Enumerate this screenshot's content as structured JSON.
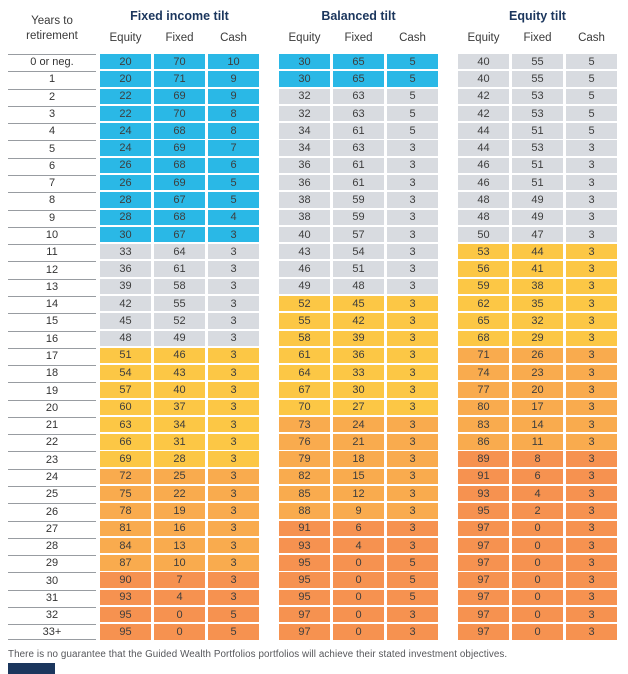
{
  "header": {
    "years_label_line1": "Years to",
    "years_label_line2": "retirement",
    "groups": [
      {
        "title": "Fixed income tilt"
      },
      {
        "title": "Balanced tilt"
      },
      {
        "title": "Equity tilt"
      }
    ],
    "columns": [
      "Equity",
      "Fixed",
      "Cash"
    ]
  },
  "palette": {
    "blue": "#2AB8E6",
    "gray": "#D8DBE0",
    "yellow": "#FCC745",
    "orangeLight": "#F9AB4E",
    "orangeDark": "#F69250",
    "navy": "#1B365D"
  },
  "rows": [
    {
      "years": "0 or neg.",
      "cells": [
        [
          20,
          70,
          10
        ],
        [
          30,
          65,
          5
        ],
        [
          40,
          55,
          5
        ]
      ],
      "colors": [
        "blue",
        "blue",
        "gray"
      ]
    },
    {
      "years": "1",
      "cells": [
        [
          20,
          71,
          9
        ],
        [
          30,
          65,
          5
        ],
        [
          40,
          55,
          5
        ]
      ],
      "colors": [
        "blue",
        "blue",
        "gray"
      ]
    },
    {
      "years": "2",
      "cells": [
        [
          22,
          69,
          9
        ],
        [
          32,
          63,
          5
        ],
        [
          42,
          53,
          5
        ]
      ],
      "colors": [
        "blue",
        "gray",
        "gray"
      ]
    },
    {
      "years": "3",
      "cells": [
        [
          22,
          70,
          8
        ],
        [
          32,
          63,
          5
        ],
        [
          42,
          53,
          5
        ]
      ],
      "colors": [
        "blue",
        "gray",
        "gray"
      ]
    },
    {
      "years": "4",
      "cells": [
        [
          24,
          68,
          8
        ],
        [
          34,
          61,
          5
        ],
        [
          44,
          51,
          5
        ]
      ],
      "colors": [
        "blue",
        "gray",
        "gray"
      ]
    },
    {
      "years": "5",
      "cells": [
        [
          24,
          69,
          7
        ],
        [
          34,
          63,
          3
        ],
        [
          44,
          53,
          3
        ]
      ],
      "colors": [
        "blue",
        "gray",
        "gray"
      ]
    },
    {
      "years": "6",
      "cells": [
        [
          26,
          68,
          6
        ],
        [
          36,
          61,
          3
        ],
        [
          46,
          51,
          3
        ]
      ],
      "colors": [
        "blue",
        "gray",
        "gray"
      ]
    },
    {
      "years": "7",
      "cells": [
        [
          26,
          69,
          5
        ],
        [
          36,
          61,
          3
        ],
        [
          46,
          51,
          3
        ]
      ],
      "colors": [
        "blue",
        "gray",
        "gray"
      ]
    },
    {
      "years": "8",
      "cells": [
        [
          28,
          67,
          5
        ],
        [
          38,
          59,
          3
        ],
        [
          48,
          49,
          3
        ]
      ],
      "colors": [
        "blue",
        "gray",
        "gray"
      ]
    },
    {
      "years": "9",
      "cells": [
        [
          28,
          68,
          4
        ],
        [
          38,
          59,
          3
        ],
        [
          48,
          49,
          3
        ]
      ],
      "colors": [
        "blue",
        "gray",
        "gray"
      ]
    },
    {
      "years": "10",
      "cells": [
        [
          30,
          67,
          3
        ],
        [
          40,
          57,
          3
        ],
        [
          50,
          47,
          3
        ]
      ],
      "colors": [
        "blue",
        "gray",
        "gray"
      ]
    },
    {
      "years": "11",
      "cells": [
        [
          33,
          64,
          3
        ],
        [
          43,
          54,
          3
        ],
        [
          53,
          44,
          3
        ]
      ],
      "colors": [
        "gray",
        "gray",
        "yellow"
      ]
    },
    {
      "years": "12",
      "cells": [
        [
          36,
          61,
          3
        ],
        [
          46,
          51,
          3
        ],
        [
          56,
          41,
          3
        ]
      ],
      "colors": [
        "gray",
        "gray",
        "yellow"
      ]
    },
    {
      "years": "13",
      "cells": [
        [
          39,
          58,
          3
        ],
        [
          49,
          48,
          3
        ],
        [
          59,
          38,
          3
        ]
      ],
      "colors": [
        "gray",
        "gray",
        "yellow"
      ]
    },
    {
      "years": "14",
      "cells": [
        [
          42,
          55,
          3
        ],
        [
          52,
          45,
          3
        ],
        [
          62,
          35,
          3
        ]
      ],
      "colors": [
        "gray",
        "yellow",
        "yellow"
      ]
    },
    {
      "years": "15",
      "cells": [
        [
          45,
          52,
          3
        ],
        [
          55,
          42,
          3
        ],
        [
          65,
          32,
          3
        ]
      ],
      "colors": [
        "gray",
        "yellow",
        "yellow"
      ]
    },
    {
      "years": "16",
      "cells": [
        [
          48,
          49,
          3
        ],
        [
          58,
          39,
          3
        ],
        [
          68,
          29,
          3
        ]
      ],
      "colors": [
        "gray",
        "yellow",
        "yellow"
      ]
    },
    {
      "years": "17",
      "cells": [
        [
          51,
          46,
          3
        ],
        [
          61,
          36,
          3
        ],
        [
          71,
          26,
          3
        ]
      ],
      "colors": [
        "yellow",
        "yellow",
        "orangeLight"
      ]
    },
    {
      "years": "18",
      "cells": [
        [
          54,
          43,
          3
        ],
        [
          64,
          33,
          3
        ],
        [
          74,
          23,
          3
        ]
      ],
      "colors": [
        "yellow",
        "yellow",
        "orangeLight"
      ]
    },
    {
      "years": "19",
      "cells": [
        [
          57,
          40,
          3
        ],
        [
          67,
          30,
          3
        ],
        [
          77,
          20,
          3
        ]
      ],
      "colors": [
        "yellow",
        "yellow",
        "orangeLight"
      ]
    },
    {
      "years": "20",
      "cells": [
        [
          60,
          37,
          3
        ],
        [
          70,
          27,
          3
        ],
        [
          80,
          17,
          3
        ]
      ],
      "colors": [
        "yellow",
        "yellow",
        "orangeLight"
      ]
    },
    {
      "years": "21",
      "cells": [
        [
          63,
          34,
          3
        ],
        [
          73,
          24,
          3
        ],
        [
          83,
          14,
          3
        ]
      ],
      "colors": [
        "yellow",
        "orangeLight",
        "orangeLight"
      ]
    },
    {
      "years": "22",
      "cells": [
        [
          66,
          31,
          3
        ],
        [
          76,
          21,
          3
        ],
        [
          86,
          11,
          3
        ]
      ],
      "colors": [
        "yellow",
        "orangeLight",
        "orangeLight"
      ]
    },
    {
      "years": "23",
      "cells": [
        [
          69,
          28,
          3
        ],
        [
          79,
          18,
          3
        ],
        [
          89,
          8,
          3
        ]
      ],
      "colors": [
        "yellow",
        "orangeLight",
        "orangeDark"
      ]
    },
    {
      "years": "24",
      "cells": [
        [
          72,
          25,
          3
        ],
        [
          82,
          15,
          3
        ],
        [
          91,
          6,
          3
        ]
      ],
      "colors": [
        "orangeLight",
        "orangeLight",
        "orangeDark"
      ]
    },
    {
      "years": "25",
      "cells": [
        [
          75,
          22,
          3
        ],
        [
          85,
          12,
          3
        ],
        [
          93,
          4,
          3
        ]
      ],
      "colors": [
        "orangeLight",
        "orangeLight",
        "orangeDark"
      ]
    },
    {
      "years": "26",
      "cells": [
        [
          78,
          19,
          3
        ],
        [
          88,
          9,
          3
        ],
        [
          95,
          2,
          3
        ]
      ],
      "colors": [
        "orangeLight",
        "orangeLight",
        "orangeDark"
      ]
    },
    {
      "years": "27",
      "cells": [
        [
          81,
          16,
          3
        ],
        [
          91,
          6,
          3
        ],
        [
          97,
          0,
          3
        ]
      ],
      "colors": [
        "orangeLight",
        "orangeDark",
        "orangeDark"
      ]
    },
    {
      "years": "28",
      "cells": [
        [
          84,
          13,
          3
        ],
        [
          93,
          4,
          3
        ],
        [
          97,
          0,
          3
        ]
      ],
      "colors": [
        "orangeLight",
        "orangeDark",
        "orangeDark"
      ]
    },
    {
      "years": "29",
      "cells": [
        [
          87,
          10,
          3
        ],
        [
          95,
          0,
          5
        ],
        [
          97,
          0,
          3
        ]
      ],
      "colors": [
        "orangeLight",
        "orangeDark",
        "orangeDark"
      ]
    },
    {
      "years": "30",
      "cells": [
        [
          90,
          7,
          3
        ],
        [
          95,
          0,
          5
        ],
        [
          97,
          0,
          3
        ]
      ],
      "colors": [
        "orangeDark",
        "orangeDark",
        "orangeDark"
      ]
    },
    {
      "years": "31",
      "cells": [
        [
          93,
          4,
          3
        ],
        [
          95,
          0,
          5
        ],
        [
          97,
          0,
          3
        ]
      ],
      "colors": [
        "orangeDark",
        "orangeDark",
        "orangeDark"
      ]
    },
    {
      "years": "32",
      "cells": [
        [
          95,
          0,
          5
        ],
        [
          97,
          0,
          3
        ],
        [
          97,
          0,
          3
        ]
      ],
      "colors": [
        "orangeDark",
        "orangeDark",
        "orangeDark"
      ]
    },
    {
      "years": "33+",
      "cells": [
        [
          95,
          0,
          5
        ],
        [
          97,
          0,
          3
        ],
        [
          97,
          0,
          3
        ]
      ],
      "colors": [
        "orangeDark",
        "orangeDark",
        "orangeDark"
      ]
    }
  ],
  "footer": {
    "disclaimer": "There is no guarantee that the Guided Wealth Portfolios portfolios will achieve their stated investment objectives."
  }
}
